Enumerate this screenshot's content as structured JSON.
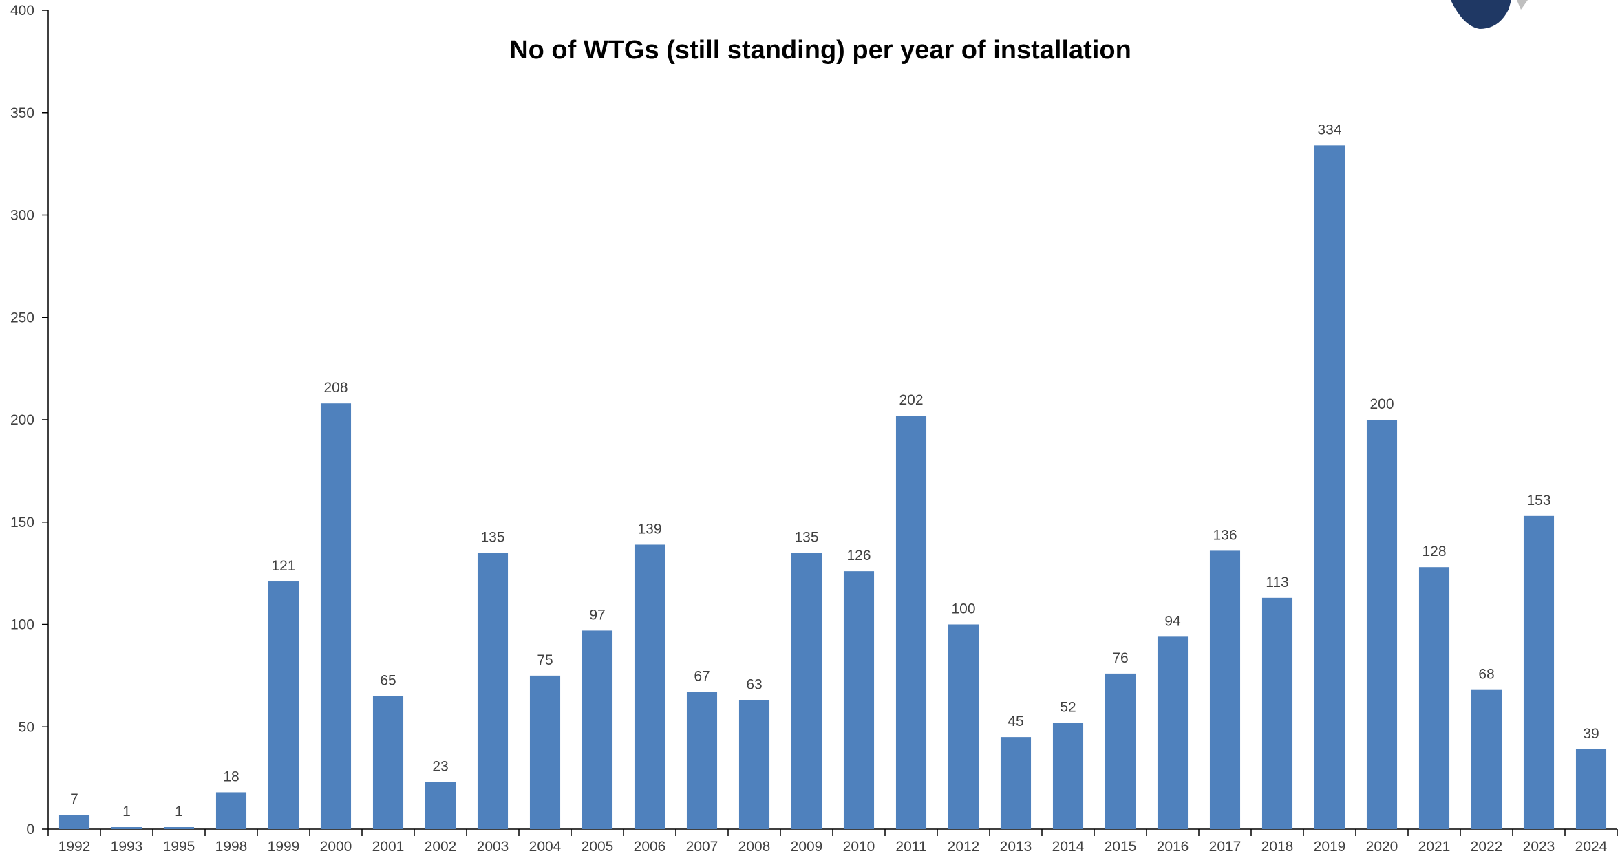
{
  "chart_data": {
    "type": "bar",
    "title": "No of WTGs (still standing) per year of installation",
    "xlabel": "",
    "ylabel": "",
    "ylim": [
      0,
      400
    ],
    "yticks": [
      0,
      50,
      100,
      150,
      200,
      250,
      300,
      350,
      400
    ],
    "grid": false,
    "legend": "none",
    "categories": [
      "1992",
      "1993",
      "1995",
      "1998",
      "1999",
      "2000",
      "2001",
      "2002",
      "2003",
      "2004",
      "2005",
      "2006",
      "2007",
      "2008",
      "2009",
      "2010",
      "2011",
      "2012",
      "2013",
      "2014",
      "2015",
      "2016",
      "2017",
      "2018",
      "2019",
      "2020",
      "2021",
      "2022",
      "2023",
      "2024"
    ],
    "series": [
      {
        "values": [
          7,
          1,
          1,
          18,
          121,
          208,
          65,
          23,
          135,
          75,
          97,
          139,
          67,
          63,
          135,
          126,
          202,
          100,
          45,
          52,
          76,
          94,
          136,
          113,
          334,
          200,
          128,
          68,
          153,
          39
        ],
        "color": "#4f81bd"
      }
    ],
    "data_labels": true
  },
  "colors": {
    "bar": "#4f81bd",
    "axis": "#000000",
    "text": "#404040",
    "logo_primary": "#1f3864",
    "logo_secondary": "#bfbfbf"
  },
  "logo": {
    "icon": "company-logo-icon"
  }
}
